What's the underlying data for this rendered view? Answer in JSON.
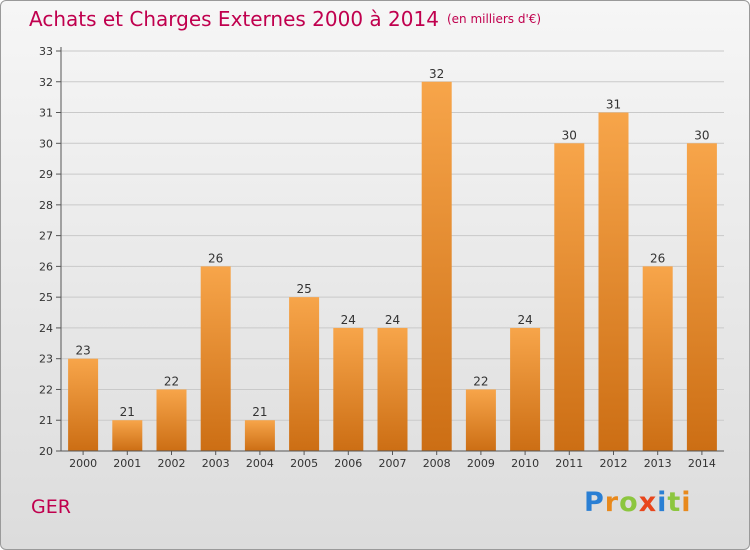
{
  "header": {
    "title": "Achats et Charges Externes 2000 à 2014",
    "subtitle": "(en milliers d'€)"
  },
  "footer": {
    "place": "GER",
    "logo": "Proxiti"
  },
  "colors": {
    "title": "#c0004e",
    "bar_light": "#f7a54a",
    "bar_dark": "#cc6e14",
    "axis": "#555555",
    "grid": "#c9c9c9"
  },
  "chart_data": {
    "type": "bar",
    "title": "Achats et Charges Externes 2000 à 2014",
    "xlabel": "",
    "ylabel": "",
    "categories": [
      "2000",
      "2001",
      "2002",
      "2003",
      "2004",
      "2005",
      "2006",
      "2007",
      "2008",
      "2009",
      "2010",
      "2011",
      "2012",
      "2013",
      "2014"
    ],
    "values": [
      23,
      21,
      22,
      26,
      21,
      25,
      24,
      24,
      32,
      22,
      24,
      30,
      31,
      26,
      30
    ],
    "ylim": [
      20,
      33
    ],
    "yticks": [
      20,
      21,
      22,
      23,
      24,
      25,
      26,
      27,
      28,
      29,
      30,
      31,
      32,
      33
    ],
    "grid": true,
    "data_labels": true
  }
}
